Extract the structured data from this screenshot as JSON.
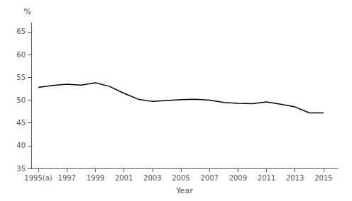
{
  "chart_data": {
    "type": "line",
    "x": [
      1995,
      1996,
      1997,
      1998,
      1999,
      2000,
      2001,
      2002,
      2003,
      2004,
      2005,
      2006,
      2007,
      2008,
      2009,
      2010,
      2011,
      2012,
      2013,
      2014,
      2015
    ],
    "values": [
      52.8,
      53.2,
      53.5,
      53.3,
      53.8,
      53.0,
      51.5,
      50.2,
      49.7,
      49.9,
      50.1,
      50.2,
      50.0,
      49.5,
      49.3,
      49.2,
      49.6,
      49.1,
      48.5,
      47.2,
      47.2
    ],
    "xlabel": "Year",
    "ylabel": "%",
    "xlim": [
      1994.5,
      2016.0
    ],
    "ylim": [
      35,
      67
    ],
    "xticks": [
      {
        "value": 1995,
        "label": "1995(a)"
      },
      1997,
      1999,
      2001,
      2003,
      2005,
      2007,
      2009,
      2011,
      2013,
      2015
    ],
    "yticks": [
      35,
      40,
      45,
      50,
      55,
      60,
      65
    ],
    "color": "#000000",
    "grid": false
  }
}
